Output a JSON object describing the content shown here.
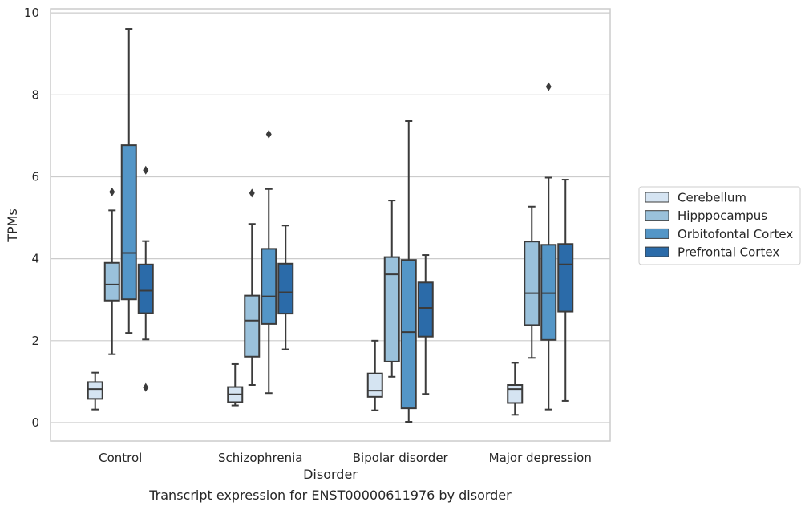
{
  "chart_data": {
    "type": "box",
    "title": "Transcript expression for ENST00000611976 by disorder",
    "xlabel": "Disorder",
    "ylabel": "TPMs",
    "ylim": [
      -0.45,
      10.1
    ],
    "yticks": [
      0,
      2,
      4,
      6,
      8,
      10
    ],
    "grid": "horizontal",
    "legend_position": "right",
    "categories": [
      "Control",
      "Schizophrenia",
      "Bipolar disorder",
      "Major depression"
    ],
    "series": [
      {
        "name": "Cerebellum",
        "color": "#d5e4f2",
        "boxes": [
          {
            "whislo": 0.32,
            "q1": 0.58,
            "med": 0.82,
            "q3": 0.99,
            "whishi": 1.22,
            "fliers": []
          },
          {
            "whislo": 0.42,
            "q1": 0.5,
            "med": 0.69,
            "q3": 0.87,
            "whishi": 1.43,
            "fliers": []
          },
          {
            "whislo": 0.3,
            "q1": 0.63,
            "med": 0.78,
            "q3": 1.2,
            "whishi": 2.0,
            "fliers": []
          },
          {
            "whislo": 0.19,
            "q1": 0.48,
            "med": 0.82,
            "q3": 0.92,
            "whishi": 1.46,
            "fliers": []
          }
        ]
      },
      {
        "name": "Hipppocampus",
        "color": "#9ac1db",
        "boxes": [
          {
            "whislo": 1.67,
            "q1": 2.98,
            "med": 3.37,
            "q3": 3.9,
            "whishi": 5.18,
            "fliers": [
              5.63
            ]
          },
          {
            "whislo": 0.92,
            "q1": 1.61,
            "med": 2.49,
            "q3": 3.1,
            "whishi": 4.85,
            "fliers": [
              5.6
            ]
          },
          {
            "whislo": 1.12,
            "q1": 1.49,
            "med": 3.62,
            "q3": 4.04,
            "whishi": 5.42,
            "fliers": []
          },
          {
            "whislo": 1.58,
            "q1": 2.38,
            "med": 3.16,
            "q3": 4.42,
            "whishi": 5.27,
            "fliers": []
          }
        ]
      },
      {
        "name": "Orbitofontal Cortex",
        "color": "#5496c7",
        "boxes": [
          {
            "whislo": 2.19,
            "q1": 3.01,
            "med": 4.14,
            "q3": 6.77,
            "whishi": 9.61,
            "fliers": []
          },
          {
            "whislo": 0.72,
            "q1": 2.41,
            "med": 3.08,
            "q3": 4.24,
            "whishi": 5.7,
            "fliers": [
              7.04
            ]
          },
          {
            "whislo": 0.02,
            "q1": 0.35,
            "med": 2.21,
            "q3": 3.97,
            "whishi": 7.36,
            "fliers": []
          },
          {
            "whislo": 0.32,
            "q1": 2.02,
            "med": 3.16,
            "q3": 4.34,
            "whishi": 5.98,
            "fliers": [
              8.2
            ]
          }
        ]
      },
      {
        "name": "Prefrontal Cortex",
        "color": "#2b6ba9",
        "boxes": [
          {
            "whislo": 2.03,
            "q1": 2.67,
            "med": 3.22,
            "q3": 3.86,
            "whishi": 4.43,
            "fliers": [
              6.16,
              0.86
            ]
          },
          {
            "whislo": 1.79,
            "q1": 2.66,
            "med": 3.18,
            "q3": 3.88,
            "whishi": 4.81,
            "fliers": []
          },
          {
            "whislo": 0.7,
            "q1": 2.1,
            "med": 2.8,
            "q3": 3.42,
            "whishi": 4.09,
            "fliers": []
          },
          {
            "whislo": 0.53,
            "q1": 2.71,
            "med": 3.86,
            "q3": 4.36,
            "whishi": 5.93,
            "fliers": []
          }
        ]
      }
    ]
  }
}
